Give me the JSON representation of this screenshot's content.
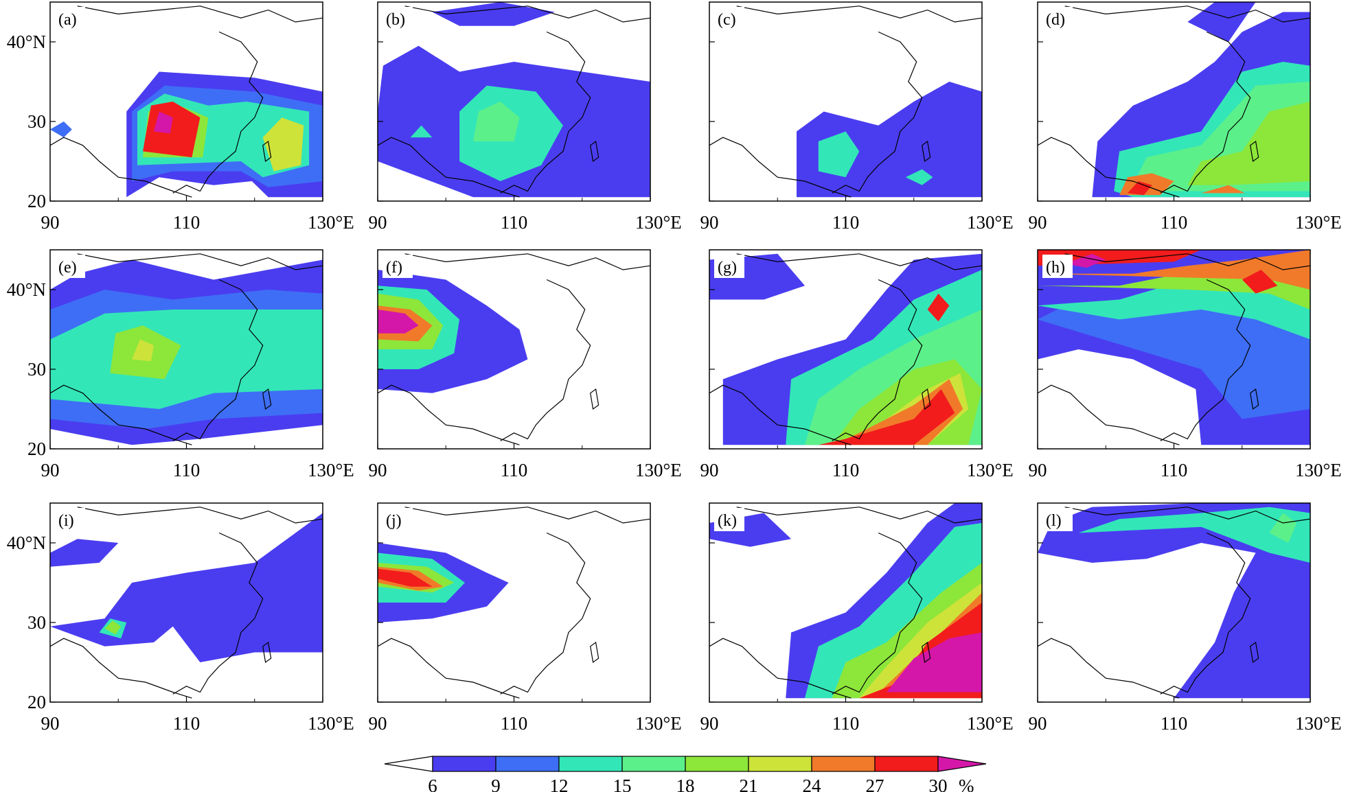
{
  "figure": {
    "x_ticks": [
      "90",
      "110",
      "130°E"
    ],
    "y_ticks": [
      "20",
      "30",
      "40°N"
    ],
    "panels": [
      {
        "label": "(a)"
      },
      {
        "label": "(b)"
      },
      {
        "label": "(c)"
      },
      {
        "label": "(d)"
      },
      {
        "label": "(e)"
      },
      {
        "label": "(f)"
      },
      {
        "label": "(g)"
      },
      {
        "label": "(h)"
      },
      {
        "label": "(i)"
      },
      {
        "label": "(j)"
      },
      {
        "label": "(k)"
      },
      {
        "label": "(l)"
      }
    ],
    "y_tick_panels": [
      0,
      4,
      8
    ]
  },
  "colorbar": {
    "levels": [
      "6",
      "9",
      "12",
      "15",
      "18",
      "21",
      "24",
      "27",
      "30"
    ],
    "unit": "%",
    "colors": [
      "#4a3df0",
      "#3e6ef5",
      "#33e6b8",
      "#5cf08a",
      "#8de63a",
      "#cde33a",
      "#f07a2a",
      "#f21c1c",
      "#d417a8"
    ],
    "under_color": "#ffffff",
    "over_color": "#d417a8"
  },
  "map": {
    "lon_range": [
      90,
      130
    ],
    "lat_range": [
      20,
      45
    ]
  }
}
